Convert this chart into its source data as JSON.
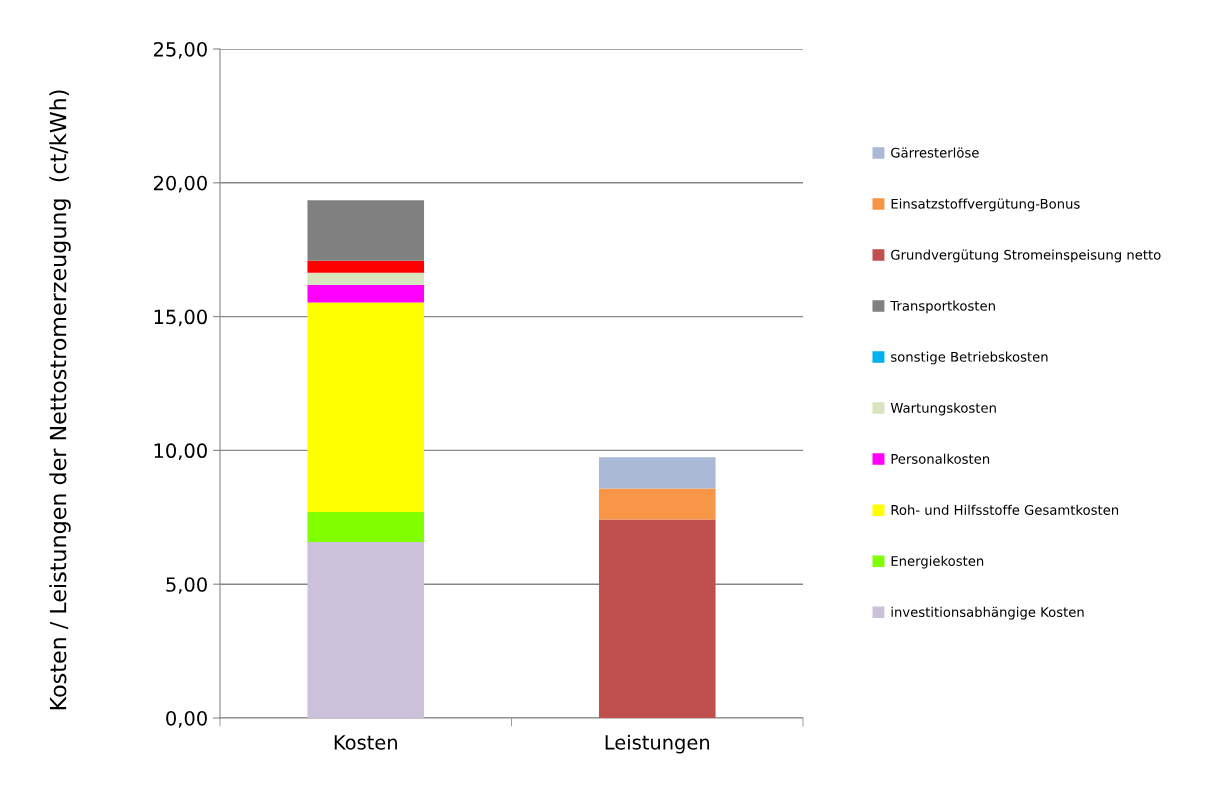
{
  "chart_data": {
    "type": "bar",
    "stacked": true,
    "ylabel": "Kosten / Leistungen der Nettostromerzeugung  (ct/kWh)",
    "categories": [
      "Kosten",
      "Leistungen"
    ],
    "series": [
      {
        "name": "investitionsabhängige Kosten",
        "color": "#ccc1da",
        "values": [
          6.58,
          null
        ]
      },
      {
        "name": "Energiekosten",
        "color": "#80ff00",
        "values": [
          1.12,
          null
        ]
      },
      {
        "name": "Roh- und Hilfsstoffe Gesamtkosten",
        "color": "#ffff00",
        "values": [
          7.83,
          null
        ]
      },
      {
        "name": "Personalkosten",
        "color": "#ff00ff",
        "values": [
          0.65,
          null
        ]
      },
      {
        "name": "Wartungskosten",
        "color": "#d7e4bd",
        "values": [
          0.46,
          null
        ]
      },
      {
        "name": "sonstige Betriebskosten",
        "color": "#00b0f0",
        "values": [
          0,
          null
        ]
      },
      {
        "color": "#ff0000",
        "values": [
          0.45,
          null
        ]
      },
      {
        "name": "Transportkosten",
        "color": "#808080",
        "values": [
          2.26,
          null
        ]
      },
      {
        "name": "Grundvergütung Stromeinspeisung netto",
        "color": "#c0504d",
        "values": [
          null,
          7.42
        ]
      },
      {
        "name": "Einsatzstoffvergütung-Bonus",
        "color": "#f79646",
        "values": [
          null,
          1.16
        ]
      },
      {
        "name": "Gärresterlöse",
        "color": "#a9b9d6",
        "values": [
          null,
          1.16
        ]
      }
    ],
    "ylim": [
      0,
      25
    ],
    "yticks": [
      {
        "value": 0,
        "label": "0,00"
      },
      {
        "value": 5,
        "label": "5,00"
      },
      {
        "value": 10,
        "label": "10,00"
      },
      {
        "value": 15,
        "label": "15,00"
      },
      {
        "value": 20,
        "label": "20,00"
      },
      {
        "value": 25,
        "label": "25,00"
      }
    ],
    "grid": "y",
    "legend": "right"
  }
}
